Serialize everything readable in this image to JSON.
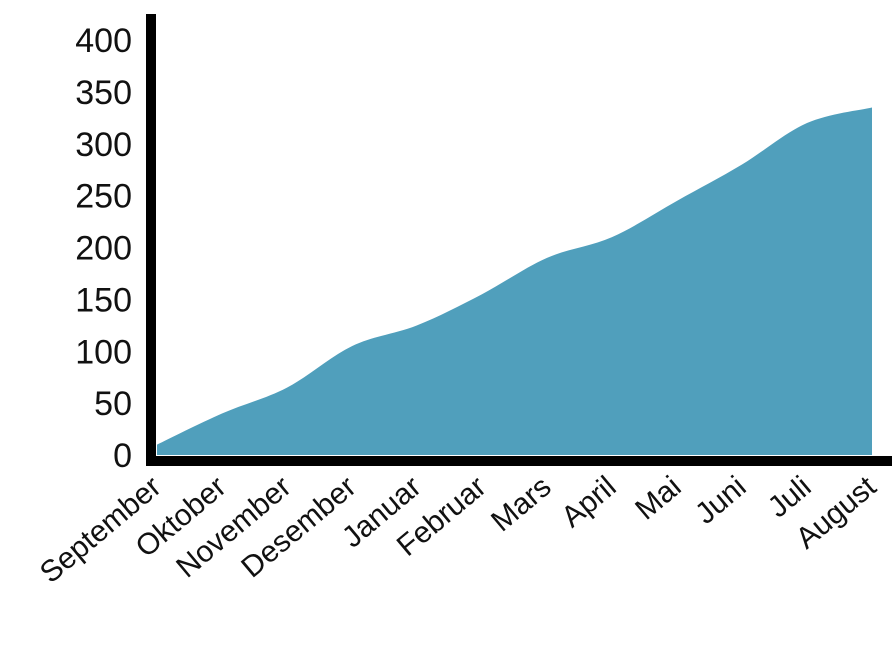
{
  "chart_data": {
    "type": "area",
    "title": "",
    "xlabel": "",
    "ylabel": "",
    "categories": [
      "September",
      "Oktober",
      "November",
      "Desember",
      "Januar",
      "Februar",
      "Mars",
      "April",
      "Mai",
      "Juni",
      "Juli",
      "August"
    ],
    "series": [
      {
        "values": [
          10,
          40,
          65,
          105,
          125,
          155,
          190,
          210,
          245,
          280,
          320,
          335
        ]
      }
    ],
    "y_ticks": [
      "0",
      "50",
      "100",
      "150",
      "200",
      "250",
      "300",
      "350",
      "400"
    ],
    "ylim": [
      0,
      400
    ],
    "grid": false,
    "legend": "none",
    "colors": {
      "fill": "#509fbc",
      "axis": "#000000"
    }
  }
}
